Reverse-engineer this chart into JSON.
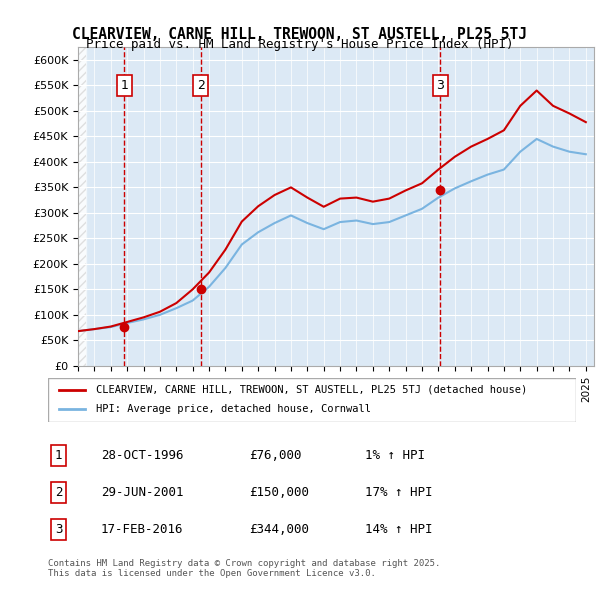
{
  "title": "CLEARVIEW, CARNE HILL, TREWOON, ST AUSTELL, PL25 5TJ",
  "subtitle": "Price paid vs. HM Land Registry's House Price Index (HPI)",
  "ylim": [
    0,
    625000
  ],
  "yticks": [
    0,
    50000,
    100000,
    150000,
    200000,
    250000,
    300000,
    350000,
    400000,
    450000,
    500000,
    550000,
    600000
  ],
  "xlim_start": 1994.0,
  "xlim_end": 2025.5,
  "background_color": "#dce9f5",
  "plot_bg": "#dce9f5",
  "hpi_color": "#7ab4e0",
  "price_color": "#cc0000",
  "grid_color": "#ffffff",
  "sale_dates": [
    1996.83,
    2001.49,
    2016.12
  ],
  "sale_prices": [
    76000,
    150000,
    344000
  ],
  "sale_labels": [
    "1",
    "2",
    "3"
  ],
  "legend_label_price": "CLEARVIEW, CARNE HILL, TREWOON, ST AUSTELL, PL25 5TJ (detached house)",
  "legend_label_hpi": "HPI: Average price, detached house, Cornwall",
  "table_rows": [
    [
      "1",
      "28-OCT-1996",
      "£76,000",
      "1% ↑ HPI"
    ],
    [
      "2",
      "29-JUN-2001",
      "£150,000",
      "17% ↑ HPI"
    ],
    [
      "3",
      "17-FEB-2016",
      "£344,000",
      "14% ↑ HPI"
    ]
  ],
  "footnote": "Contains HM Land Registry data © Crown copyright and database right 2025.\nThis data is licensed under the Open Government Licence v3.0.",
  "hpi_years": [
    1994,
    1995,
    1996,
    1997,
    1998,
    1999,
    2000,
    2001,
    2002,
    2003,
    2004,
    2005,
    2006,
    2007,
    2008,
    2009,
    2010,
    2011,
    2012,
    2013,
    2014,
    2015,
    2016,
    2017,
    2018,
    2019,
    2020,
    2021,
    2022,
    2023,
    2024,
    2025
  ],
  "hpi_values": [
    68000,
    72000,
    76000,
    84000,
    91000,
    100000,
    113000,
    128000,
    155000,
    192000,
    238000,
    262000,
    280000,
    295000,
    280000,
    268000,
    282000,
    285000,
    278000,
    282000,
    295000,
    308000,
    330000,
    348000,
    362000,
    375000,
    385000,
    420000,
    445000,
    430000,
    420000,
    415000
  ],
  "price_years": [
    1994,
    1995,
    1996,
    1997,
    1998,
    1999,
    2000,
    2001,
    2002,
    2003,
    2004,
    2005,
    2006,
    2007,
    2008,
    2009,
    2010,
    2011,
    2012,
    2013,
    2014,
    2015,
    2016,
    2017,
    2018,
    2019,
    2020,
    2021,
    2022,
    2023,
    2024,
    2025
  ],
  "price_values": [
    68000,
    72000,
    77000,
    86000,
    95000,
    106000,
    123000,
    150000,
    183000,
    228000,
    283000,
    313000,
    335000,
    350000,
    330000,
    312000,
    328000,
    330000,
    322000,
    328000,
    344000,
    358000,
    385000,
    410000,
    430000,
    445000,
    462000,
    510000,
    540000,
    510000,
    495000,
    478000
  ]
}
